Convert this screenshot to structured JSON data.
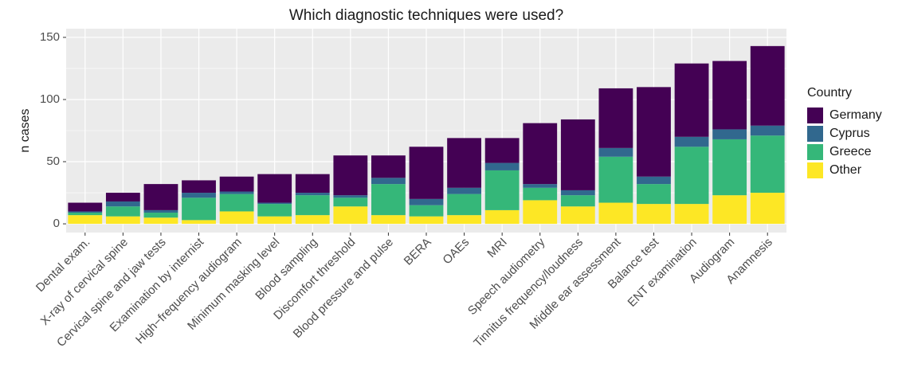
{
  "chart_data": {
    "type": "stacked_bar",
    "title": "Which diagnostic techniques were used?",
    "y_label": "n cases",
    "legend_title": "Country",
    "legend_position": "right",
    "grid": true,
    "categories": [
      "Dental exam.",
      "X-ray of cervical spine",
      "Cervical spine and jaw tests",
      "Examination by internist",
      "High−frequency audiogram",
      "Minimum masking level",
      "Blood sampling",
      "Discomfort threshold",
      "Blood pressure and pulse",
      "BERA",
      "OAEs",
      "MRI",
      "Speech audiometry",
      "Tinnitus frequency/loudness",
      "Middle ear assessment",
      "Balance test",
      "ENT examination",
      "Audiogram",
      "Anamnesis"
    ],
    "series": [
      {
        "name": "Germany",
        "color": "#440154",
        "values": [
          7,
          7,
          21,
          10,
          12,
          23,
          15,
          32,
          18,
          42,
          40,
          20,
          49,
          57,
          48,
          72,
          59,
          55,
          64
        ]
      },
      {
        "name": "Cyprus",
        "color": "#31688e",
        "values": [
          1,
          4,
          2,
          4,
          2,
          1,
          2,
          2,
          5,
          5,
          5,
          6,
          3,
          4,
          7,
          6,
          8,
          8,
          8
        ]
      },
      {
        "name": "Greece",
        "color": "#35b779",
        "values": [
          2,
          8,
          4,
          18,
          14,
          10,
          16,
          7,
          25,
          9,
          17,
          32,
          10,
          9,
          37,
          16,
          46,
          45,
          46
        ]
      },
      {
        "name": "Other",
        "color": "#fde725",
        "values": [
          7,
          6,
          5,
          3,
          10,
          6,
          7,
          14,
          7,
          6,
          7,
          11,
          19,
          14,
          17,
          16,
          16,
          23,
          25
        ]
      }
    ],
    "ylim": [
      -7,
      157
    ],
    "yticks": [
      0,
      50,
      100,
      150
    ]
  }
}
